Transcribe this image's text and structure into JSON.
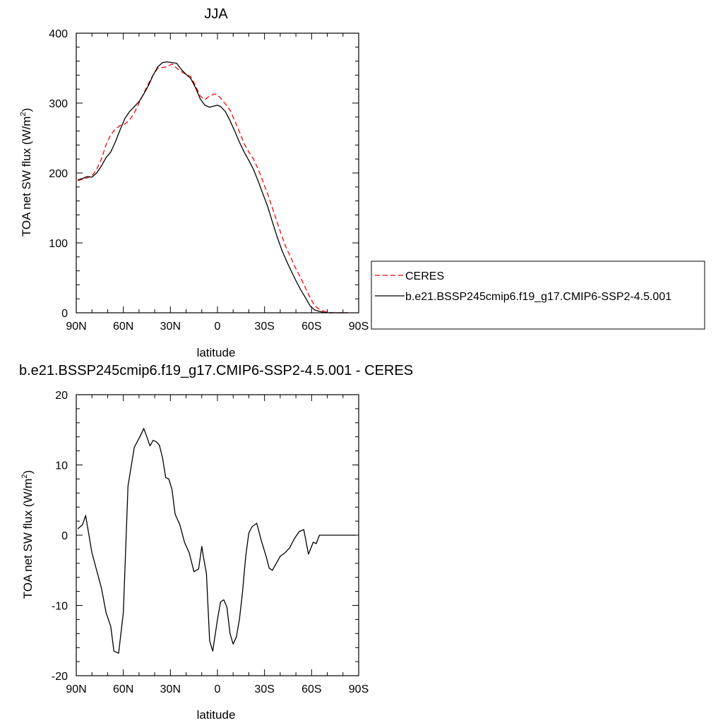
{
  "chart_data": [
    {
      "type": "line",
      "title": "JJA",
      "xlabel": "latitude",
      "ylabel": "TOA net SW flux (W/m",
      "ylabel_sup": "2",
      "ylabel_end": ")",
      "xlim": [
        90,
        -90
      ],
      "ylim": [
        0,
        400
      ],
      "x_ticks": [
        90,
        60,
        30,
        0,
        -30,
        -60,
        -90
      ],
      "x_tick_labels": [
        "90N",
        "60N",
        "30N",
        "0",
        "30S",
        "60S",
        "90S"
      ],
      "y_ticks": [
        0,
        100,
        200,
        300,
        400
      ],
      "y_tick_labels": [
        "0",
        "100",
        "200",
        "300",
        "400"
      ],
      "grid": false,
      "legend_position": "right",
      "series": [
        {
          "name": "CERES",
          "color": "#ff0000",
          "dash": "dashed",
          "x": [
            89,
            86,
            83,
            80,
            77,
            74,
            71,
            68,
            65,
            62,
            59,
            56,
            53,
            50,
            47,
            44,
            41,
            38,
            35,
            32,
            29,
            26,
            23,
            20,
            17,
            14,
            11,
            8,
            5,
            2,
            0,
            -2,
            -5,
            -8,
            -11,
            -14,
            -17,
            -20,
            -23,
            -26,
            -29,
            -32,
            -35,
            -38,
            -41,
            -44,
            -47,
            -50,
            -53,
            -56,
            -59,
            -62,
            -65,
            -68,
            -71,
            -74,
            -77,
            -80,
            -83
          ],
          "y": [
            189,
            191,
            193,
            196,
            205,
            220,
            240,
            255,
            263,
            268,
            270,
            276,
            286,
            300,
            314,
            328,
            340,
            350,
            351,
            352,
            356,
            350,
            345,
            341,
            338,
            325,
            310,
            305,
            310,
            313,
            312,
            307,
            299,
            290,
            275,
            259,
            242,
            230,
            220,
            205,
            188,
            170,
            150,
            130,
            110,
            92,
            78,
            63,
            50,
            36,
            22,
            10,
            5,
            2,
            0.5,
            0,
            0,
            0,
            0
          ]
        },
        {
          "name": "b.e21.BSSP245cmip6.f19_g17.CMIP6-SSP2-4.5.001",
          "color": "#000000",
          "dash": "solid",
          "x": [
            89,
            86,
            83,
            80,
            77,
            74,
            71,
            68,
            65,
            62,
            59,
            56,
            53,
            50,
            47,
            44,
            41,
            38,
            35,
            32,
            29,
            26,
            23,
            20,
            17,
            14,
            11,
            8,
            5,
            2,
            0,
            -2,
            -5,
            -8,
            -11,
            -14,
            -17,
            -20,
            -23,
            -26,
            -29,
            -32,
            -35,
            -38,
            -41,
            -44,
            -47,
            -50,
            -53,
            -56,
            -59,
            -62,
            -65,
            -68,
            -71,
            -74,
            -77,
            -80,
            -83
          ],
          "y": [
            190,
            192,
            195,
            194,
            200,
            210,
            222,
            230,
            245,
            262,
            278,
            288,
            295,
            302,
            313,
            325,
            340,
            352,
            358,
            359,
            358,
            357,
            348,
            341,
            335,
            322,
            306,
            297,
            294,
            296,
            297,
            295,
            288,
            275,
            260,
            244,
            230,
            218,
            205,
            188,
            170,
            152,
            130,
            109,
            90,
            74,
            60,
            46,
            33,
            22,
            10,
            4,
            2,
            0.5,
            0,
            0,
            0,
            0,
            0
          ]
        }
      ]
    },
    {
      "type": "line",
      "title": "b.e21.BSSP245cmip6.f19_g17.CMIP6-SSP2-4.5.001 - CERES",
      "xlabel": "latitude",
      "ylabel": "TOA net SW flux (W/m",
      "ylabel_sup": "2",
      "ylabel_end": ")",
      "xlim": [
        90,
        -90
      ],
      "ylim": [
        -20,
        20
      ],
      "x_ticks": [
        90,
        60,
        30,
        0,
        -30,
        -60,
        -90
      ],
      "x_tick_labels": [
        "90N",
        "60N",
        "30N",
        "0",
        "30S",
        "60S",
        "90S"
      ],
      "y_ticks": [
        -20,
        -10,
        0,
        10,
        20
      ],
      "y_tick_labels": [
        "-20",
        "-10",
        "0",
        "10",
        "20"
      ],
      "grid": false,
      "series": [
        {
          "color": "#000000",
          "dash": "solid",
          "x": [
            89,
            86,
            84,
            80,
            77,
            74,
            71,
            68,
            66,
            63,
            60,
            57,
            53,
            49,
            47,
            45,
            43,
            41,
            39,
            37,
            35,
            33,
            31,
            29,
            27,
            24,
            21,
            18,
            15,
            12,
            10,
            9,
            7,
            5,
            3,
            0,
            -2,
            -4,
            -6,
            -8,
            -10,
            -12,
            -14,
            -16,
            -18,
            -20,
            -22,
            -25,
            -28,
            -31,
            -33,
            -35,
            -37,
            -40,
            -43,
            -46,
            -49,
            -52,
            -55,
            -58,
            -61,
            -63,
            -65,
            -67,
            -69,
            -72,
            -76,
            -80,
            -85,
            -88
          ],
          "y": [
            0.9,
            1.5,
            2.8,
            -2.5,
            -5.0,
            -7.5,
            -11.0,
            -13.0,
            -16.5,
            -16.8,
            -11.0,
            7.0,
            12.5,
            14.2,
            15.2,
            14.0,
            12.7,
            13.5,
            13.3,
            12.8,
            11.0,
            8.2,
            8.0,
            6.5,
            3.0,
            1.5,
            -1.0,
            -2.5,
            -5.2,
            -4.8,
            -1.6,
            -3.0,
            -5.5,
            -15.0,
            -16.5,
            -12.0,
            -9.5,
            -9.2,
            -10.2,
            -14.0,
            -15.5,
            -14.5,
            -12.0,
            -8.0,
            -3.0,
            0.3,
            1.2,
            1.7,
            -0.8,
            -3.0,
            -4.7,
            -5.0,
            -4.2,
            -3.0,
            -2.5,
            -1.8,
            -0.5,
            0.5,
            0.8,
            -2.7,
            -1.0,
            -1.2,
            0.0,
            0.0,
            0.0,
            0.0,
            0.0,
            0.0,
            0.0,
            0.0
          ]
        }
      ]
    }
  ]
}
